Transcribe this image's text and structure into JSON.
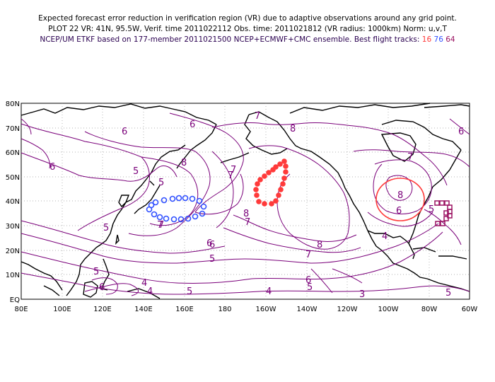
{
  "header": {
    "line1": "Expected forecast error reduction in verification region (VR) due to adaptive observations around any grid point.",
    "line2": "PLOT 22 VR: 41N, 95.5W, Verif. time 2011022112 Obs. time: 2011021812 (VR radius: 1000km) Norm: u,v,T",
    "line3_prefix": "NCEP/UM ETKF based on 177-member 2011021500 NCEP+ECMWF+CMC ensemble. Best flight tracks:",
    "track_a": "16",
    "track_b": "76",
    "track_c": "64"
  },
  "map": {
    "lat_labels": [
      "80N",
      "70N",
      "60N",
      "50N",
      "40N",
      "30N",
      "20N",
      "10N",
      "EQ"
    ],
    "lon_labels": [
      "80E",
      "100E",
      "120E",
      "140E",
      "160E",
      "180",
      "160W",
      "140W",
      "120W",
      "100W",
      "80W",
      "60W"
    ],
    "contour_labels": [
      "6",
      "6",
      "5",
      "5",
      "5",
      "5",
      "5",
      "5",
      "5",
      "5",
      "5",
      "6",
      "6",
      "6",
      "6",
      "7",
      "7",
      "7",
      "7",
      "7",
      "7",
      "8",
      "8",
      "8",
      "8",
      "8",
      "4",
      "4",
      "4",
      "3",
      "6",
      "6",
      "6",
      "7",
      "4",
      "7"
    ],
    "colors": {
      "contour": "#7a007a",
      "coast": "#000000",
      "grid": "#9a9a9a",
      "track16": "#ff3a3a",
      "track76": "#3050ff",
      "track64": "#9a1060",
      "vr_circle": "#ff3a3a"
    }
  }
}
